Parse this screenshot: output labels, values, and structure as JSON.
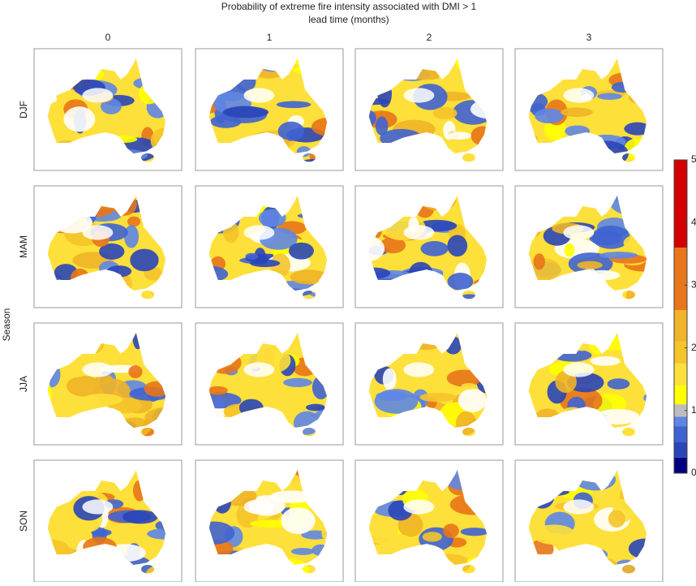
{
  "title_lines": [
    "Probability of extreme fire intensity associated with DMI > 1",
    "lead time (months)"
  ],
  "columns": [
    "0",
    "1",
    "2",
    "3"
  ],
  "rows": [
    "DJF",
    "MAM",
    "JJA",
    "SON"
  ],
  "y_label": "Season",
  "colorbar": {
    "lim": [
      0,
      5
    ],
    "ticks": [
      0,
      1,
      2,
      3,
      4,
      5
    ],
    "bounds": [
      0,
      0.25,
      0.5,
      0.75,
      0.9,
      1.1,
      1.4,
      1.75,
      2.1,
      2.6,
      3.6,
      5
    ],
    "colors": [
      "#000080",
      "#2a45b8",
      "#3f63d3",
      "#5f86e6",
      "#bdbdbd",
      "#ffff00",
      "#fde03a",
      "#f5c42a",
      "#f0b428",
      "#e8761a",
      "#d40000"
    ]
  }
}
